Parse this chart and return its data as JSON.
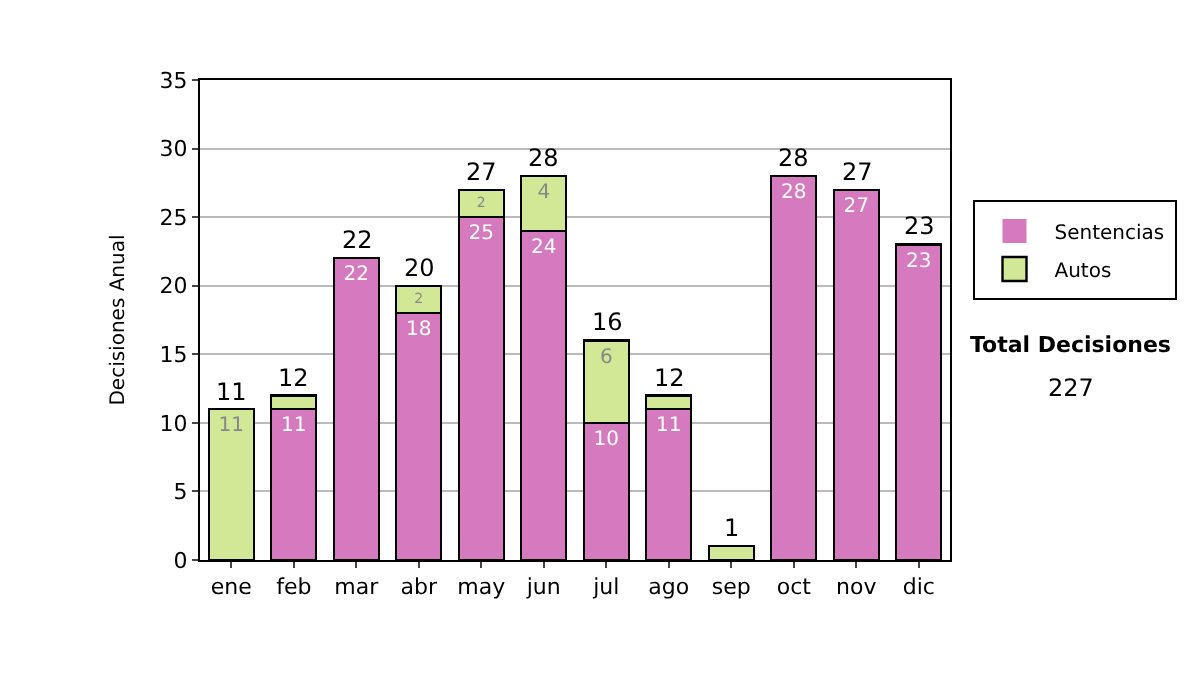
{
  "chart_data": {
    "type": "bar",
    "stacked": true,
    "ylabel": "Decisiones Anual",
    "categories": [
      "ene",
      "feb",
      "mar",
      "abr",
      "may",
      "jun",
      "jul",
      "ago",
      "sep",
      "oct",
      "nov",
      "dic"
    ],
    "series": [
      {
        "name": "Sentencias",
        "color": "#d67ac0",
        "values": [
          0,
          11,
          22,
          18,
          25,
          24,
          10,
          11,
          0,
          28,
          27,
          23
        ],
        "value_labels": [
          null,
          "11",
          "22",
          "18",
          "25",
          "24",
          "10",
          "11",
          null,
          "28",
          "27",
          "23"
        ]
      },
      {
        "name": "Autos",
        "color": "#d2e897",
        "values": [
          11,
          1,
          0,
          2,
          2,
          4,
          6,
          1,
          1,
          0,
          0,
          0
        ],
        "value_labels": [
          "11",
          null,
          null,
          "2",
          "2",
          "4",
          "6",
          null,
          null,
          null,
          null,
          null
        ]
      }
    ],
    "totals": [
      "11",
      "12",
      "22",
      "20",
      "27",
      "28",
      "16",
      "12",
      "1",
      "28",
      "27",
      "23"
    ],
    "ylim": [
      0,
      35
    ],
    "yticks": [
      0,
      5,
      10,
      15,
      20,
      25,
      30,
      35
    ],
    "grid": "y",
    "legend": "right",
    "annotations": [
      "Total Decisiones",
      "227"
    ]
  }
}
